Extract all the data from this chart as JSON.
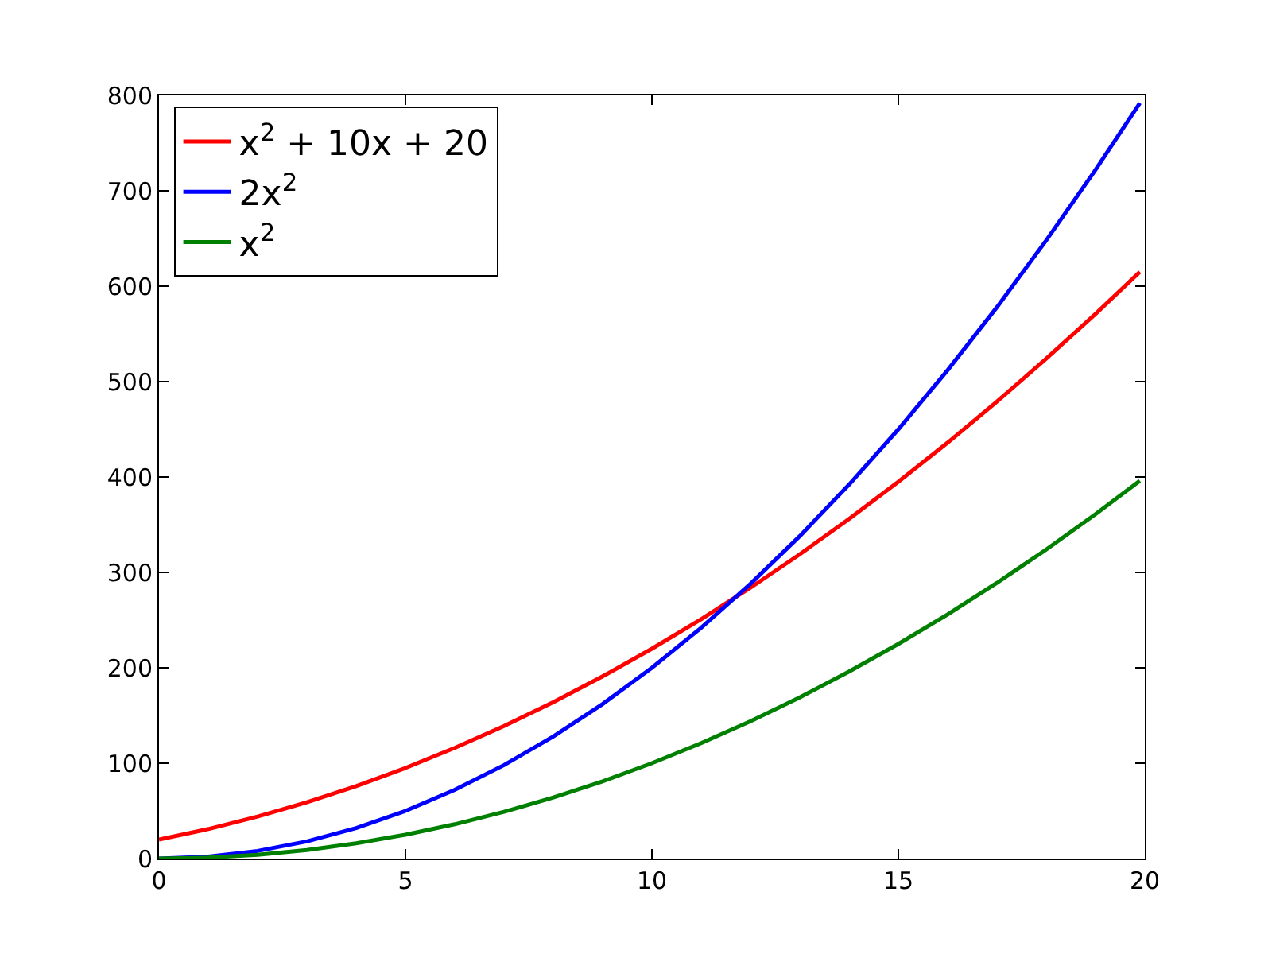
{
  "chart_data": {
    "type": "line",
    "x": [
      0,
      1,
      2,
      3,
      4,
      5,
      6,
      7,
      8,
      9,
      10,
      11,
      12,
      13,
      14,
      15,
      16,
      17,
      18,
      19,
      19.9
    ],
    "series": [
      {
        "name": "x$^{2}$ + 10x + 20",
        "color": "#ff0000",
        "values": [
          20,
          31,
          44,
          59,
          76,
          95,
          116,
          139,
          164,
          191,
          220,
          251,
          284,
          319,
          356,
          395,
          436,
          479,
          524,
          571,
          615
        ]
      },
      {
        "name": "2x$^{2}$",
        "color": "#0000ff",
        "values": [
          0,
          2,
          8,
          18,
          32,
          50,
          72,
          98,
          128,
          162,
          200,
          242,
          288,
          338,
          392,
          450,
          512,
          578,
          648,
          722,
          792
        ]
      },
      {
        "name": "x$^{2}$",
        "color": "#008000",
        "values": [
          0,
          1,
          4,
          9,
          16,
          25,
          36,
          49,
          64,
          81,
          100,
          121,
          144,
          169,
          196,
          225,
          256,
          289,
          324,
          361,
          396
        ]
      }
    ],
    "xlim": [
      0,
      20
    ],
    "xticks": [
      0,
      5,
      10,
      15,
      20
    ],
    "ylim": [
      0,
      800
    ],
    "yticks": [
      0,
      100,
      200,
      300,
      400,
      500,
      600,
      700,
      800
    ],
    "legend": "top left",
    "marker": "none",
    "line_style": "solid"
  }
}
